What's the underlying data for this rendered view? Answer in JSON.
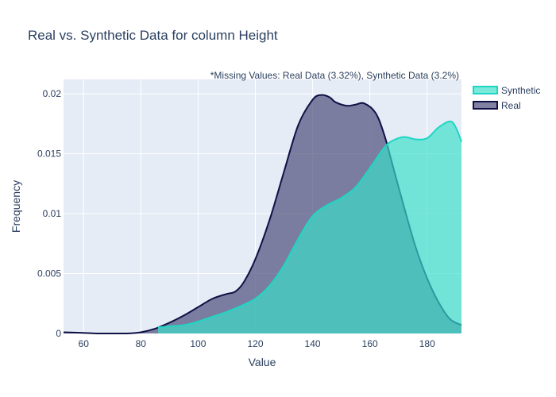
{
  "chart_data": {
    "type": "area",
    "title": "Real vs. Synthetic Data for column Height",
    "annotation": "*Missing Values: Real Data (3.32%), Synthetic Data (3.2%)",
    "xlabel": "Value",
    "ylabel": "Frequency",
    "xlim": [
      53,
      192
    ],
    "ylim": [
      0,
      0.0212
    ],
    "x_ticks": [
      60,
      80,
      100,
      120,
      140,
      160,
      180
    ],
    "y_ticks": [
      0,
      0.005,
      0.01,
      0.015,
      0.02
    ],
    "y_tick_labels": [
      "0",
      "0.005",
      "0.01",
      "0.015",
      "0.02"
    ],
    "grid": true,
    "legend_position": "top-right",
    "series": [
      {
        "name": "Real",
        "fill_color": "rgba(80,82,125,0.72)",
        "line_color": "#0f1145",
        "x": [
          53,
          60,
          65,
          70,
          75,
          80,
          85,
          90,
          95,
          100,
          105,
          110,
          113,
          116,
          120,
          125,
          130,
          135,
          140,
          143,
          146,
          148,
          152,
          155,
          158,
          162,
          165,
          168,
          172,
          176,
          180,
          184,
          188,
          192
        ],
        "y": [
          0.0001,
          5e-05,
          0.0,
          0.0,
          0.0,
          0.0001,
          0.0004,
          0.0009,
          0.0015,
          0.0022,
          0.0029,
          0.0033,
          0.0035,
          0.0043,
          0.0062,
          0.0095,
          0.0135,
          0.0174,
          0.0195,
          0.0199,
          0.0197,
          0.0193,
          0.019,
          0.0191,
          0.0192,
          0.0184,
          0.0166,
          0.014,
          0.0105,
          0.0072,
          0.0046,
          0.0026,
          0.0012,
          0.0007
        ]
      },
      {
        "name": "Synthetic",
        "fill_color": "rgba(58,222,200,0.68)",
        "line_color": "#1fd6c4",
        "x": [
          86,
          90,
          95,
          100,
          105,
          110,
          115,
          120,
          125,
          130,
          135,
          140,
          145,
          150,
          155,
          160,
          165,
          168,
          172,
          176,
          180,
          184,
          188,
          190,
          192
        ],
        "y": [
          0.0005,
          0.0006,
          0.0007,
          0.001,
          0.0014,
          0.0018,
          0.0023,
          0.0029,
          0.004,
          0.0057,
          0.0079,
          0.0098,
          0.0107,
          0.0113,
          0.0122,
          0.0138,
          0.0155,
          0.0161,
          0.0164,
          0.0162,
          0.0163,
          0.0172,
          0.0177,
          0.0172,
          0.016
        ]
      }
    ]
  }
}
